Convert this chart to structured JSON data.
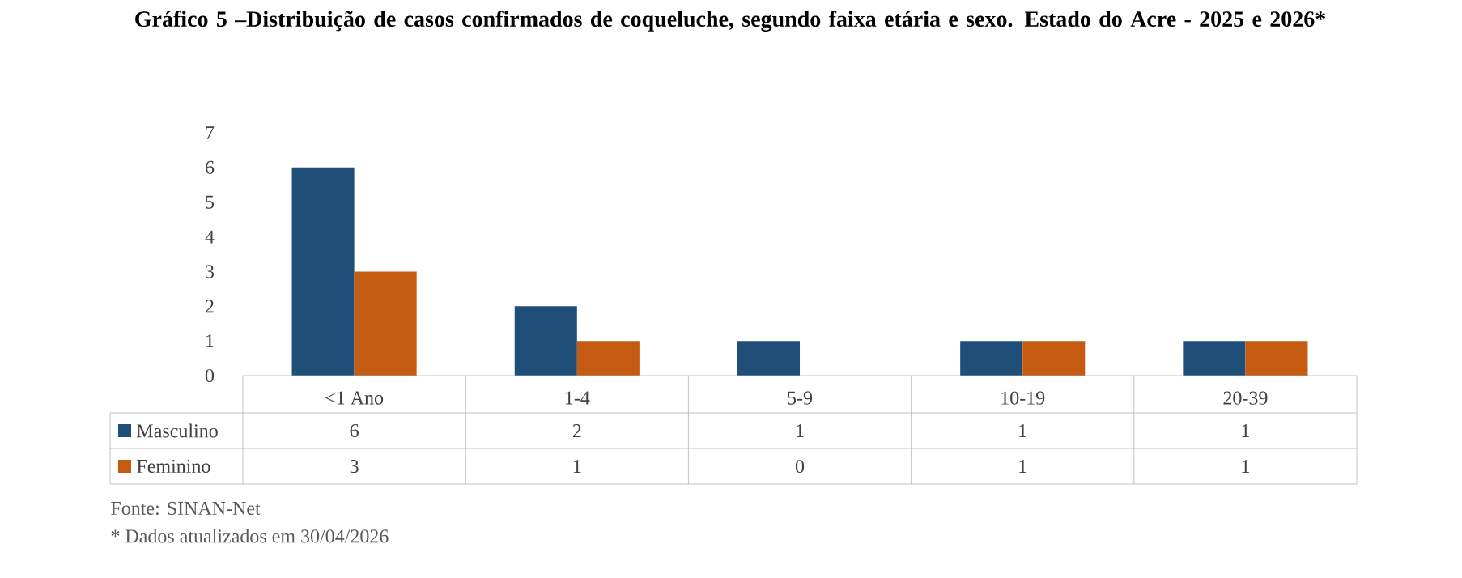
{
  "chart_data": {
    "type": "bar",
    "title": "Gráfico 5 –Distribuição de casos confirmados de coqueluche, segundo faixa etária e sexo. Estado do Acre - 2025 e 2026*",
    "categories": [
      "<1 Ano",
      "1-4",
      "5-9",
      "10-19",
      "20-39"
    ],
    "series": [
      {
        "name": "Masculino",
        "color": "#1f4e79",
        "values": [
          6,
          2,
          1,
          1,
          1
        ]
      },
      {
        "name": "Feminino",
        "color": "#c55a11",
        "values": [
          3,
          1,
          0,
          1,
          1
        ]
      }
    ],
    "ylim": [
      0,
      7
    ],
    "yticks": [
      0,
      1,
      2,
      3,
      4,
      5,
      6,
      7
    ],
    "data_labels": true,
    "legend": "bottom",
    "annotations": [
      "Fonte: SINAN-Net",
      "* Dados atualizados em 30/04/2026"
    ]
  }
}
